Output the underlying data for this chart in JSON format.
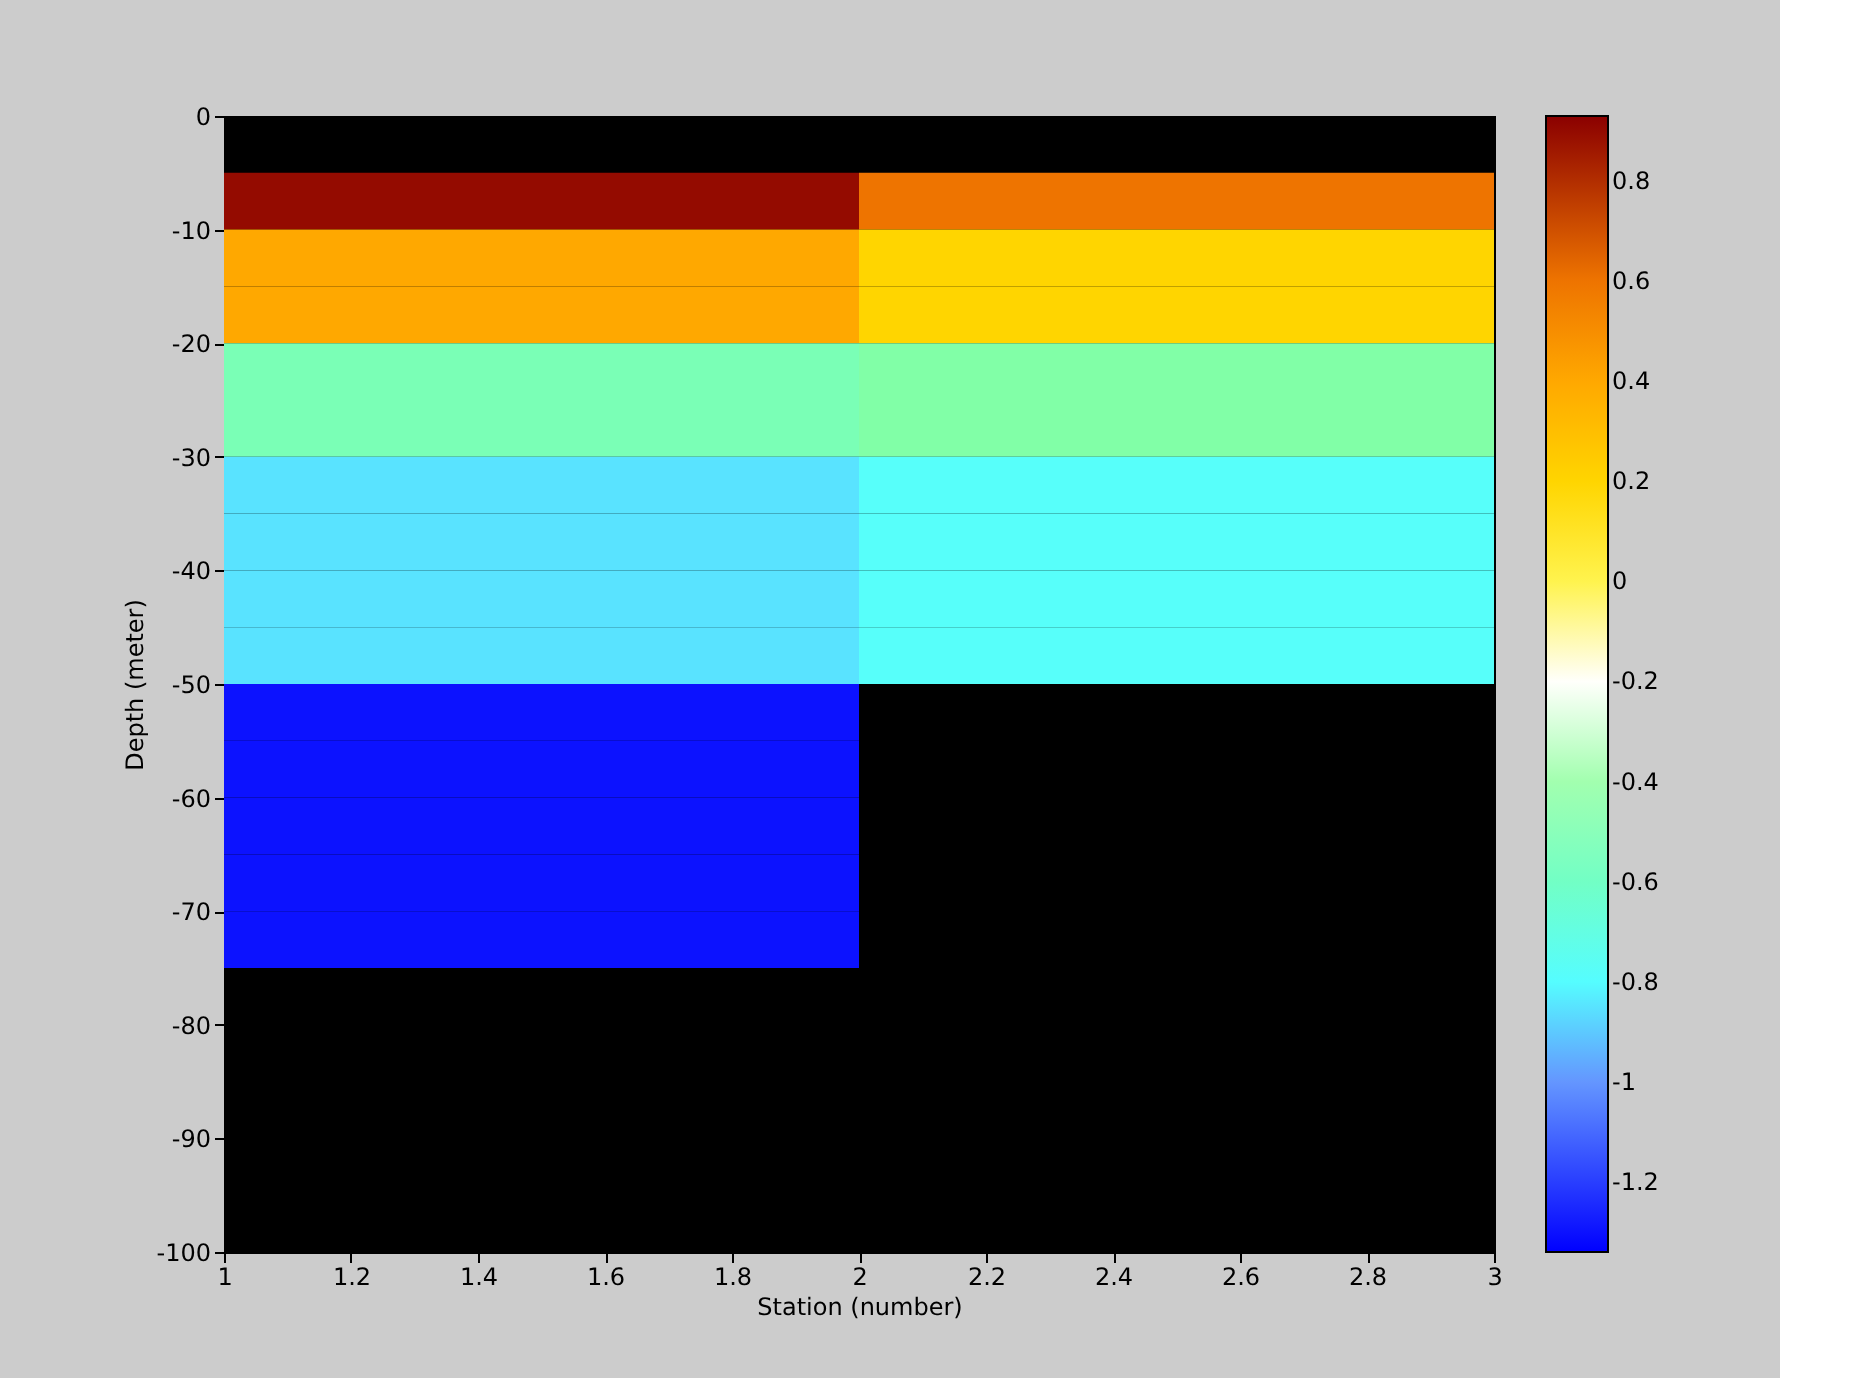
{
  "chart_data": {
    "type": "heatmap",
    "xlabel": "Station (number)",
    "ylabel": "Depth (meter)",
    "x": [
      1.5,
      2.5
    ],
    "y": [
      -7.5,
      -12.5,
      -17.5,
      -22.5,
      -27.5,
      -32.5,
      -37.5,
      -42.5,
      -47.5,
      -52.5,
      -57.5,
      -62.5,
      -67.5,
      -72.5
    ],
    "cells": [
      [
        0.9,
        0.6
      ],
      [
        0.4,
        0.2
      ],
      [
        0.4,
        0.2
      ],
      [
        -0.55,
        -0.5
      ],
      [
        -0.55,
        -0.5
      ],
      [
        -0.85,
        -0.78
      ],
      [
        -0.85,
        -0.78
      ],
      [
        -0.85,
        -0.78
      ],
      [
        -0.85,
        -0.78
      ],
      [
        -1.3,
        null
      ],
      [
        -1.3,
        null
      ],
      [
        -1.3,
        null
      ],
      [
        -1.3,
        null
      ],
      [
        -1.3,
        null
      ]
    ],
    "xlim": [
      1,
      3
    ],
    "xticks": [
      1,
      1.2,
      1.4,
      1.6,
      1.8,
      2,
      2.2,
      2.4,
      2.6,
      2.8,
      3
    ],
    "ylim": [
      -100,
      0
    ],
    "yticks": [
      0,
      -10,
      -20,
      -30,
      -40,
      -50,
      -60,
      -70,
      -80,
      -90,
      -100
    ],
    "clim": [
      -1.34,
      0.93
    ],
    "cticks": [
      0.8,
      0.6,
      0.4,
      0.2,
      0,
      -0.2,
      -0.4,
      -0.6,
      -0.8,
      -1,
      -1.2
    ],
    "grid": false
  }
}
